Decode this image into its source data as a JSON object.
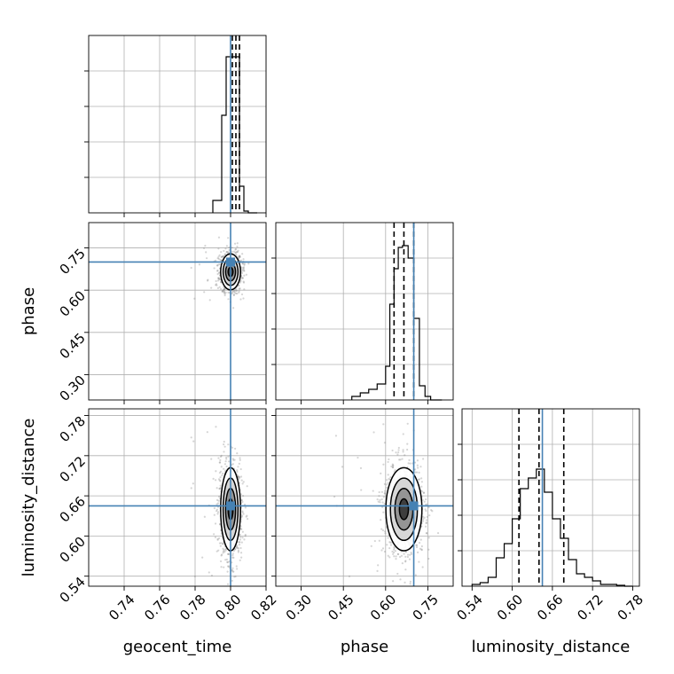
{
  "chart_data": {
    "type": "scatter",
    "parameters": [
      "geocent_time",
      "phase",
      "luminosity_distance"
    ],
    "axis_labels": [
      "geocent_time",
      "phase",
      "luminosity_distance"
    ],
    "truths": {
      "geocent_time": 0.8,
      "phase": 0.7,
      "luminosity_distance": 0.645
    },
    "quantiles": {
      "geocent_time": [
        0.801,
        0.803,
        0.805
      ],
      "phase": [
        0.63,
        0.665,
        0.7
      ],
      "luminosity_distance": [
        0.61,
        0.64,
        0.677
      ]
    },
    "ranges": {
      "geocent_time": [
        0.72,
        0.82
      ],
      "phase": [
        0.21,
        0.84
      ],
      "luminosity_distance": [
        0.525,
        0.79
      ]
    },
    "ticks": {
      "geocent_time": [
        "0.74",
        "0.76",
        "0.78",
        "0.80",
        "0.82"
      ],
      "phase": [
        "0.30",
        "0.45",
        "0.60",
        "0.75"
      ],
      "luminosity_distance": [
        "0.54",
        "0.60",
        "0.66",
        "0.72",
        "0.78"
      ]
    },
    "histograms": {
      "geocent_time": {
        "edges": [
          0.79,
          0.795,
          0.7975,
          0.8,
          0.8025,
          0.805,
          0.8075,
          0.81,
          0.815
        ],
        "counts": [
          0.07,
          0.55,
          0.88,
          0.88,
          0.88,
          0.15,
          0.01,
          0
        ]
      },
      "phase": {
        "edges": [
          0.48,
          0.51,
          0.54,
          0.57,
          0.6,
          0.615,
          0.63,
          0.645,
          0.66,
          0.68,
          0.7,
          0.72,
          0.74,
          0.76,
          0.78,
          0.8
        ],
        "counts": [
          0.02,
          0.04,
          0.06,
          0.09,
          0.19,
          0.54,
          0.74,
          0.86,
          0.87,
          0.8,
          0.46,
          0.08,
          0.02,
          0.0,
          0.0
        ]
      },
      "luminosity_distance": {
        "edges": [
          0.54,
          0.552,
          0.564,
          0.576,
          0.588,
          0.6,
          0.612,
          0.624,
          0.636,
          0.648,
          0.66,
          0.672,
          0.684,
          0.696,
          0.708,
          0.72,
          0.732,
          0.744,
          0.756,
          0.768,
          0.78
        ],
        "counts": [
          0.01,
          0.02,
          0.05,
          0.16,
          0.24,
          0.38,
          0.55,
          0.61,
          0.66,
          0.53,
          0.38,
          0.27,
          0.15,
          0.07,
          0.05,
          0.03,
          0.01,
          0.01,
          0.005,
          0.0
        ]
      }
    },
    "posterior_center": {
      "geocent_time": 0.8,
      "phase": 0.665,
      "luminosity_distance": 0.64
    },
    "posterior_sigma": {
      "geocent_time": 0.0028,
      "phase": 0.032,
      "luminosity_distance": 0.031
    },
    "grid": true
  }
}
